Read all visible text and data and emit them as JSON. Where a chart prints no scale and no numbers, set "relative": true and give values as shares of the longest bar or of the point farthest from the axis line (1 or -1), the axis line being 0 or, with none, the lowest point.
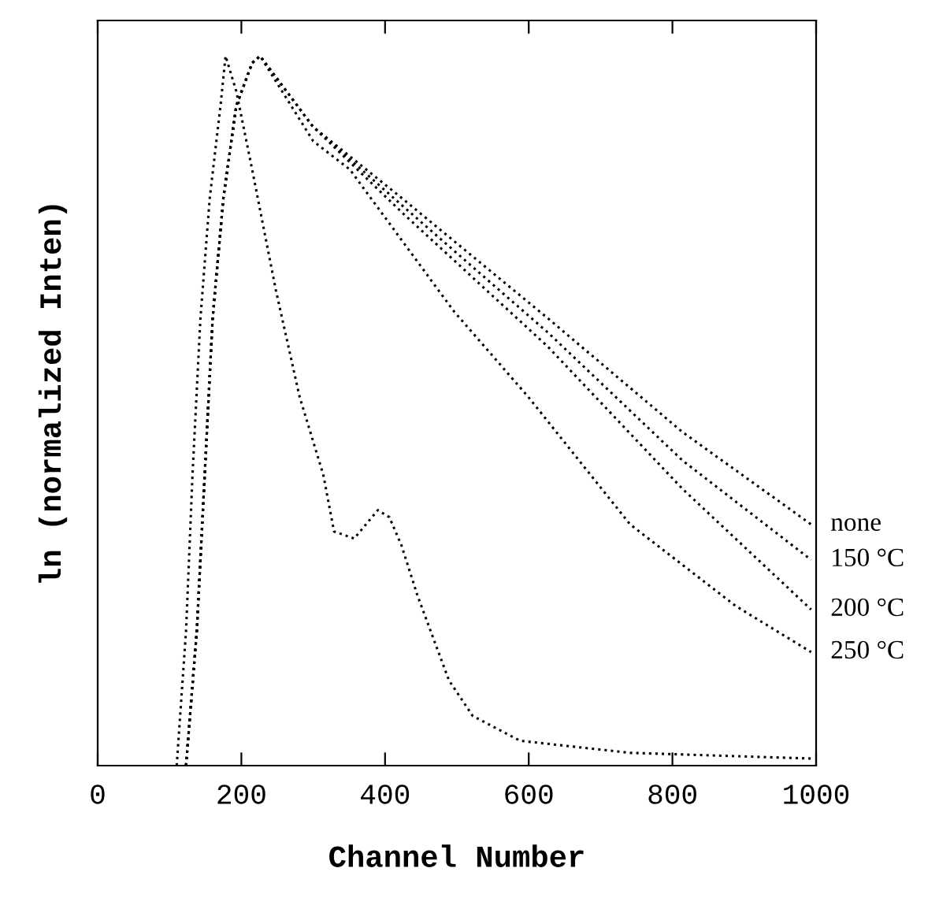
{
  "chart_data": {
    "type": "line",
    "relative": true,
    "xlabel": "Channel Number",
    "ylabel": "ln (normalized Inten)",
    "xlim": [
      0,
      1000
    ],
    "xticks": [
      0,
      200,
      400,
      600,
      800,
      1000
    ],
    "grid": false,
    "line_style": "dotted",
    "series": [
      {
        "color": "#000000",
        "x": [
          110,
          123,
          132,
          143,
          156,
          171,
          178,
          193,
          215,
          248,
          281,
          314,
          329,
          357,
          390,
          406,
          423,
          445,
          467,
          489,
          522,
          588,
          741,
          993
        ],
        "values": [
          0,
          0.19,
          0.41,
          0.63,
          0.8,
          0.93,
          1.0,
          0.95,
          0.84,
          0.67,
          0.52,
          0.41,
          0.33,
          0.32,
          0.36,
          0.35,
          0.31,
          0.24,
          0.18,
          0.12,
          0.07,
          0.035,
          0.018,
          0.01
        ]
      },
      {
        "name": "none",
        "color": "#000000",
        "x": [
          123,
          138,
          149,
          160,
          175,
          193,
          215,
          226,
          300,
          423,
          627,
          814,
          993
        ],
        "values": [
          0,
          0.19,
          0.41,
          0.63,
          0.8,
          0.93,
          0.99,
          1.0,
          0.9,
          0.8,
          0.63,
          0.47,
          0.34
        ]
      },
      {
        "name": "150 °C",
        "color": "#000000",
        "x": [
          123,
          138,
          149,
          160,
          175,
          193,
          215,
          226,
          300,
          423,
          627,
          814,
          993
        ],
        "values": [
          0,
          0.19,
          0.41,
          0.63,
          0.8,
          0.93,
          0.99,
          1.0,
          0.9,
          0.79,
          0.61,
          0.43,
          0.29
        ]
      },
      {
        "name": "200 °C",
        "color": "#000000",
        "x": [
          123,
          138,
          149,
          160,
          175,
          193,
          215,
          226,
          300,
          423,
          627,
          814,
          993
        ],
        "values": [
          0,
          0.19,
          0.41,
          0.63,
          0.8,
          0.93,
          0.99,
          1.0,
          0.9,
          0.78,
          0.59,
          0.39,
          0.22
        ]
      },
      {
        "name": "250 °C",
        "color": "#000000",
        "x": [
          123,
          138,
          149,
          160,
          175,
          193,
          215,
          226,
          300,
          351,
          496,
          599,
          741,
          888,
          993
        ],
        "values": [
          0,
          0.19,
          0.41,
          0.63,
          0.8,
          0.93,
          0.99,
          1.0,
          0.88,
          0.84,
          0.64,
          0.52,
          0.34,
          0.225,
          0.16
        ]
      }
    ]
  }
}
